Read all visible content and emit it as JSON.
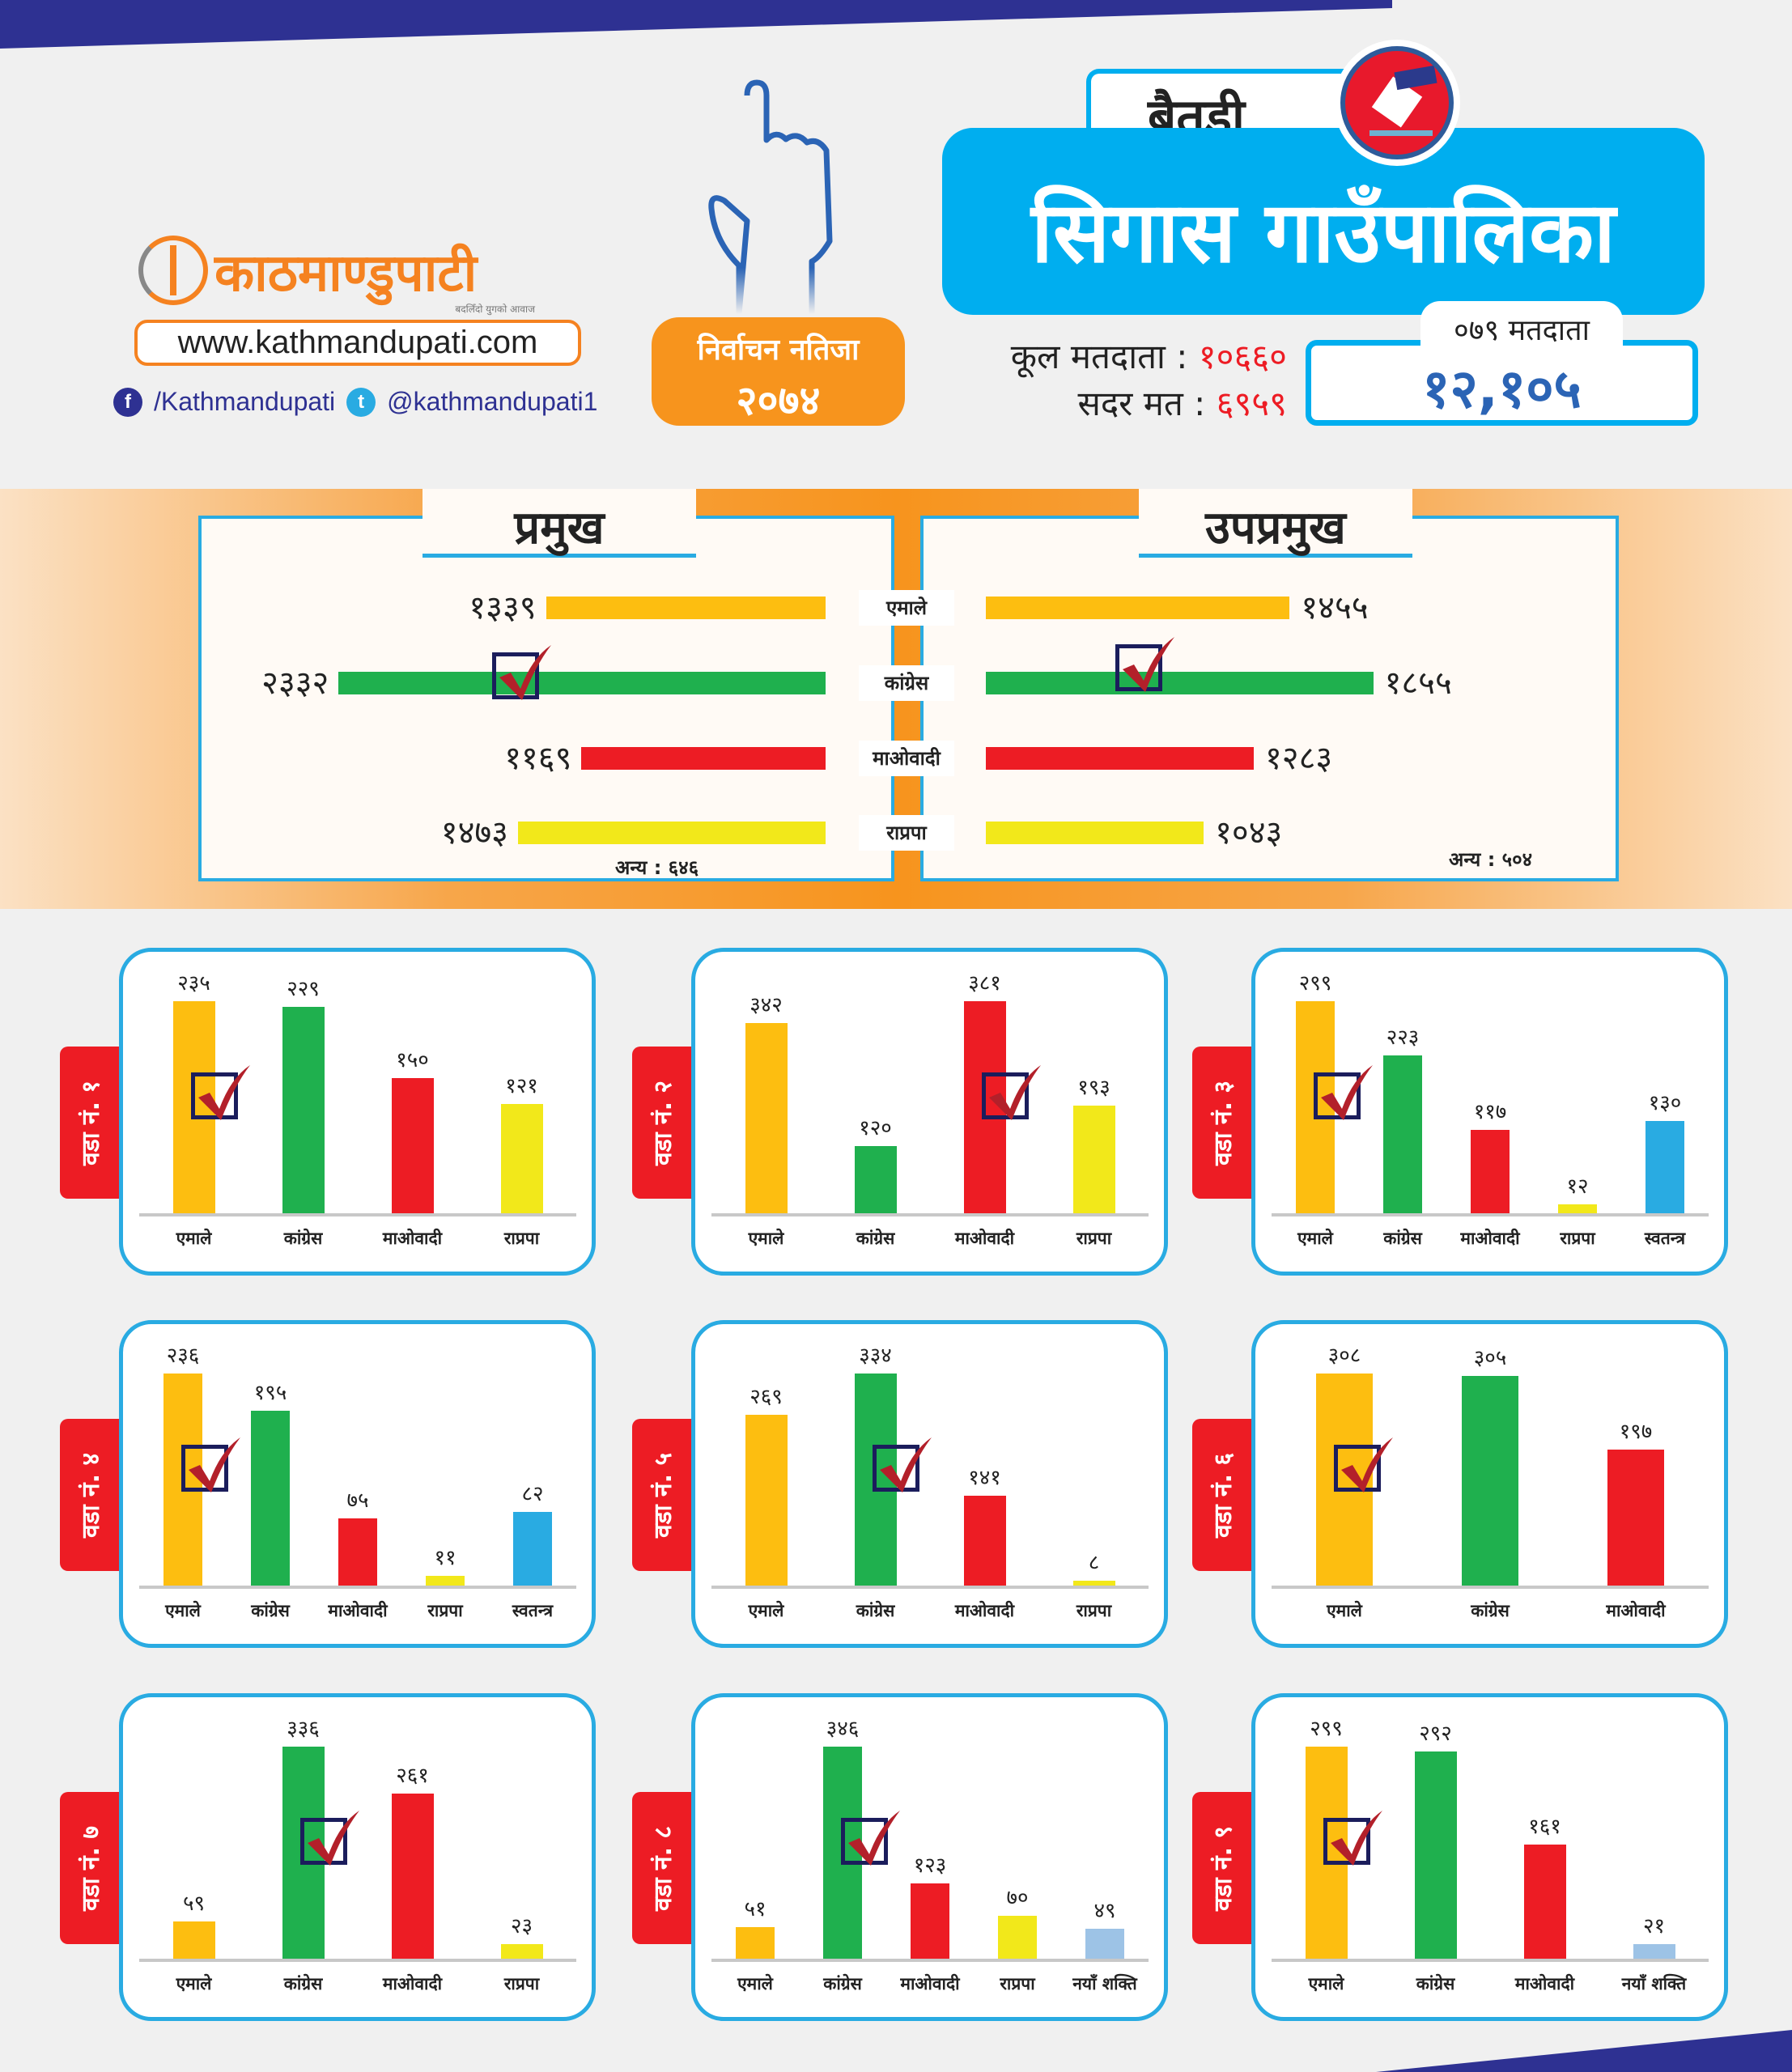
{
  "header": {
    "logo_text": "काठमाण्डुपाटी",
    "logo_tagline": "बदलिँदो युगको आवाज",
    "website": "www.kathmandupati.com",
    "facebook": "/Kathmandupati",
    "twitter": "@kathmandupati1",
    "badge_title": "निर्वाचन नतिजा",
    "badge_year": "२०७४",
    "district": "बैतडी",
    "municipality": "सिगास गाउँपालिका",
    "total_voters_label": "कूल मतदाता :",
    "total_voters": "१०६६०",
    "valid_votes_label": "सदर मत :",
    "valid_votes": "६९५९",
    "voters_079_label": "०७९ मतदाता",
    "voters_079": "१२,१०५"
  },
  "colors": {
    "एमाले": "#FDBE10",
    "कांग्रेस": "#1FB04E",
    "माओवादी": "#ED1C24",
    "राप्रपा": "#F2E81A",
    "स्वतन्त्र": "#29ABE2",
    "नयाँ शक्ति": "#9DC3E6",
    "accent_blue": "#00AEEF",
    "accent_orange": "#F7941D",
    "navy": "#2E3192"
  },
  "chart_data": {
    "type": "bar",
    "main": {
      "parties": [
        "एमाले",
        "कांग्रेस",
        "माओवादी",
        "राप्रपा"
      ],
      "chief": {
        "title": "प्रमुख",
        "values": [
          1339,
          2332,
          1169,
          1473
        ],
        "value_labels": [
          "१३३९",
          "२३३२",
          "११६९",
          "१४७३"
        ],
        "winner": 1,
        "others_label": "अन्य : ६४६",
        "others": 646
      },
      "deputy": {
        "title": "उपप्रमुख",
        "values": [
          1455,
          1855,
          1283,
          1043
        ],
        "value_labels": [
          "१४५५",
          "१८५५",
          "१२८३",
          "१०४३"
        ],
        "winner": 1,
        "others_label": "अन्य : ५०४",
        "others": 504
      }
    },
    "wards": [
      {
        "label": "वडा नं. १",
        "categories": [
          "एमाले",
          "कांग्रेस",
          "माओवादी",
          "राप्रपा"
        ],
        "values": [
          235,
          229,
          150,
          121
        ],
        "value_labels": [
          "२३५",
          "२२९",
          "१५०",
          "१२१"
        ],
        "winner": 0
      },
      {
        "label": "वडा नं. २",
        "categories": [
          "एमाले",
          "कांग्रेस",
          "माओवादी",
          "राप्रपा"
        ],
        "values": [
          342,
          120,
          381,
          193
        ],
        "value_labels": [
          "३४२",
          "१२०",
          "३८१",
          "१९३"
        ],
        "winner": 2
      },
      {
        "label": "वडा नं. ३",
        "categories": [
          "एमाले",
          "कांग्रेस",
          "माओवादी",
          "राप्रपा",
          "स्वतन्त्र"
        ],
        "values": [
          299,
          223,
          117,
          12,
          130
        ],
        "value_labels": [
          "२९९",
          "२२३",
          "११७",
          "१२",
          "१३०"
        ],
        "winner": 0
      },
      {
        "label": "वडा नं. ४",
        "categories": [
          "एमाले",
          "कांग्रेस",
          "माओवादी",
          "राप्रपा",
          "स्वतन्त्र"
        ],
        "values": [
          236,
          195,
          75,
          11,
          82
        ],
        "value_labels": [
          "२३६",
          "१९५",
          "७५",
          "११",
          "८२"
        ],
        "winner": 0
      },
      {
        "label": "वडा नं. ५",
        "categories": [
          "एमाले",
          "कांग्रेस",
          "माओवादी",
          "राप्रपा"
        ],
        "values": [
          269,
          334,
          141,
          8
        ],
        "value_labels": [
          "२६९",
          "३३४",
          "१४१",
          "८"
        ],
        "winner": 1
      },
      {
        "label": "वडा नं. ६",
        "categories": [
          "एमाले",
          "कांग्रेस",
          "माओवादी"
        ],
        "values": [
          308,
          305,
          197
        ],
        "value_labels": [
          "३०८",
          "३०५",
          "१९७"
        ],
        "winner": 0
      },
      {
        "label": "वडा नं. ७",
        "categories": [
          "एमाले",
          "कांग्रेस",
          "माओवादी",
          "राप्रपा"
        ],
        "values": [
          59,
          336,
          261,
          23
        ],
        "value_labels": [
          "५९",
          "३३६",
          "२६१",
          "२३"
        ],
        "winner": 1
      },
      {
        "label": "वडा नं. ८",
        "categories": [
          "एमाले",
          "कांग्रेस",
          "माओवादी",
          "राप्रपा",
          "नयाँ शक्ति"
        ],
        "values": [
          51,
          346,
          123,
          70,
          49
        ],
        "value_labels": [
          "५१",
          "३४६",
          "१२३",
          "७०",
          "४९"
        ],
        "winner": 1
      },
      {
        "label": "वडा नं. ९",
        "categories": [
          "एमाले",
          "कांग्रेस",
          "माओवादी",
          "नयाँ शक्ति"
        ],
        "values": [
          299,
          292,
          161,
          21
        ],
        "value_labels": [
          "२९९",
          "२९२",
          "१६१",
          "२१"
        ],
        "winner": 0
      }
    ]
  }
}
